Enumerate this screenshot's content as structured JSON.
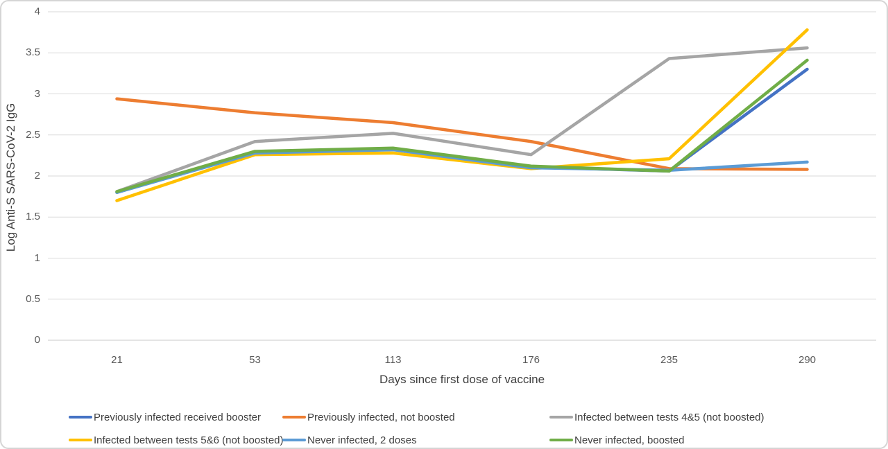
{
  "figure": {
    "background": "#ffffff",
    "border_color": "#d5d5d5"
  },
  "chart_data": {
    "type": "line",
    "title": "",
    "xlabel": "Days since first dose of vaccine",
    "ylabel": "Log Anti-S SARS-CoV-2 IgG",
    "categories": [
      "21",
      "53",
      "113",
      "176",
      "235",
      "290"
    ],
    "ylim": [
      0,
      4
    ],
    "yticks": [
      0,
      0.5,
      1,
      1.5,
      2,
      2.5,
      3,
      3.5,
      4
    ],
    "grid": "horizontal",
    "gridline_color": "#d9d9d9",
    "zero_axis_color": "#c9c9c9",
    "axis_text_color": "#595959",
    "title_text_color": "#404040",
    "legend_position": "bottom",
    "series": [
      {
        "name": "Previously infected received booster",
        "color": "#4472C4",
        "values": [
          1.8,
          2.29,
          2.33,
          2.11,
          2.06,
          3.3
        ]
      },
      {
        "name": "Previously infected, not boosted",
        "color": "#ED7D31",
        "values": [
          2.94,
          2.77,
          2.65,
          2.42,
          2.09,
          2.08
        ]
      },
      {
        "name": "Infected between tests 4&5 (not boosted)",
        "color": "#A5A5A5",
        "values": [
          1.81,
          2.42,
          2.52,
          2.26,
          3.43,
          3.56
        ]
      },
      {
        "name": "Infected between tests 5&6 (not boosted)",
        "color": "#FFC000",
        "values": [
          1.7,
          2.26,
          2.28,
          2.09,
          2.21,
          3.78
        ]
      },
      {
        "name": "Never infected, 2 doses",
        "color": "#5B9BD5",
        "values": [
          1.8,
          2.28,
          2.32,
          2.1,
          2.07,
          2.17
        ]
      },
      {
        "name": "Never infected, boosted",
        "color": "#70AD47",
        "values": [
          1.81,
          2.3,
          2.34,
          2.12,
          2.06,
          3.41
        ]
      }
    ]
  }
}
